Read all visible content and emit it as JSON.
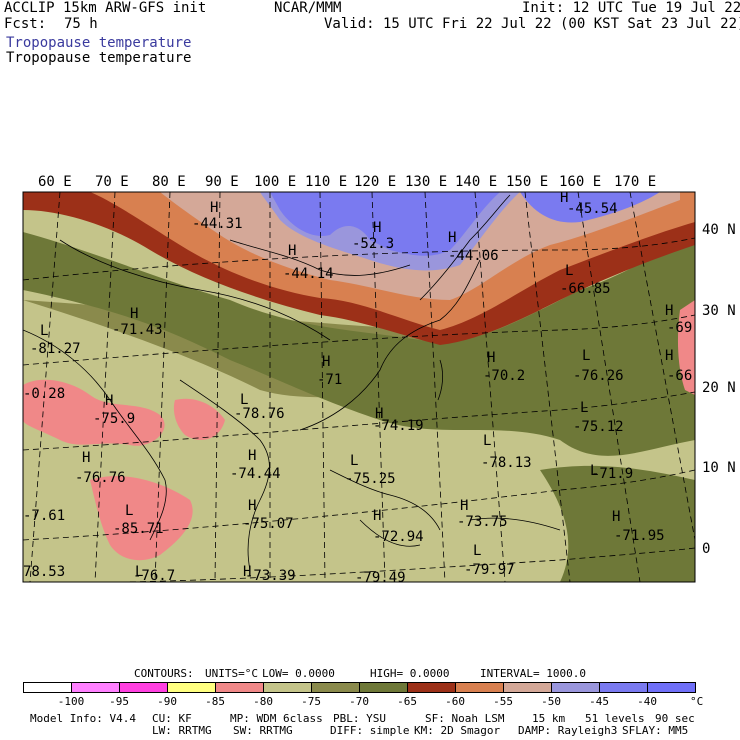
{
  "header": {
    "model_title": "ACCLIP 15km ARW-GFS init",
    "fcst_label": "Fcst:",
    "fcst_value": "75 h",
    "center": "NCAR/MMM",
    "init": "Init: 12 UTC Tue 19 Jul 22",
    "valid": "Valid: 15 UTC Fri 22 Jul 22 (00 KST Sat 23 Jul 22)",
    "field_title_1": "Tropopause temperature",
    "field_title_2": "Tropopause temperature"
  },
  "colors": {
    "title_1": "#3a3a9e",
    "title_2": "#000000",
    "bg_warm": "#c4c48a",
    "dark_olive": "#6e7838",
    "mid_olive": "#8a8a4c",
    "dark_red": "#9c3018",
    "orange": "#d88050",
    "light_salmon": "#d4a898",
    "lavender": "#9a96dc",
    "blue_lav": "#7a7af0",
    "pink": "#f08888"
  },
  "map": {
    "lon_labels": [
      "60 E",
      "70 E",
      "80 E",
      "90 E",
      "100 E",
      "110 E",
      "120 E",
      "130 E",
      "140 E",
      "150 E",
      "160 E",
      "170 E"
    ],
    "lat_labels": [
      "40 N",
      "30 N",
      "20 N",
      "10 N",
      "0"
    ],
    "extrema": [
      {
        "letter": "H",
        "value": "-44.31"
      },
      {
        "letter": "H",
        "value": "-44.14"
      },
      {
        "letter": "H",
        "value": "-52.3"
      },
      {
        "letter": "H",
        "value": "-44.06"
      },
      {
        "letter": "H",
        "value": "-45.54"
      },
      {
        "letter": "L",
        "value": "-66.85"
      },
      {
        "letter": "H",
        "value": "-71.43"
      },
      {
        "letter": "L",
        "value": "-81.27"
      },
      {
        "letter": "H",
        "value": "-71"
      },
      {
        "letter": "H",
        "value": "-70.2"
      },
      {
        "letter": "L",
        "value": "-76.26"
      },
      {
        "letter": "H",
        "value": "-69"
      },
      {
        "letter": "H",
        "value": "-66"
      },
      {
        "letter": "H",
        "value": "-75.9"
      },
      {
        "letter": "L",
        "value": "-78.76"
      },
      {
        "letter": "H",
        "value": "-74.19"
      },
      {
        "letter": "L",
        "value": "-75.12"
      },
      {
        "letter": "H",
        "value": "-76.76"
      },
      {
        "letter": "H",
        "value": "-74.44"
      },
      {
        "letter": "L",
        "value": "-75.25"
      },
      {
        "letter": "L",
        "value": "-78.13"
      },
      {
        "letter": "L",
        "value": "-71.9"
      },
      {
        "letter": "L",
        "value": "-85.71"
      },
      {
        "letter": "H",
        "value": "-75.07"
      },
      {
        "letter": "H",
        "value": "-73.75"
      },
      {
        "letter": "H",
        "value": "-71.95"
      },
      {
        "letter": "H",
        "value": "-72.94"
      },
      {
        "letter": "L",
        "value": "-79.97"
      },
      {
        "letter": "L",
        "value": "-76.7"
      },
      {
        "letter": "H",
        "value": "-73.39"
      },
      {
        "letter": "",
        "value": "-0.28"
      },
      {
        "letter": "",
        "value": "-7.61"
      },
      {
        "letter": "",
        "value": "78.53"
      },
      {
        "letter": "",
        "value": "-79.49"
      }
    ]
  },
  "contour_info": {
    "contours_label": "CONTOURS:",
    "units": "UNITS=°C",
    "low": "LOW=  0.0000",
    "high": "HIGH=  0.0000",
    "interval": "INTERVAL=  1000.0"
  },
  "legend": {
    "colors": [
      "#ffffff",
      "#ff80ff",
      "#ff40e0",
      "#ffff80",
      "#f08888",
      "#c4c48a",
      "#8a8a4c",
      "#6e7838",
      "#9c3018",
      "#d88050",
      "#d4a898",
      "#9a96dc",
      "#7a7af0",
      "#7070f8"
    ],
    "tick_labels": [
      "-100",
      "-95",
      "-90",
      "-85",
      "-80",
      "-75",
      "-70",
      "-65",
      "-60",
      "-55",
      "-50",
      "-45",
      "-40"
    ],
    "unit": "°C"
  },
  "footer": {
    "line1": [
      "Model Info: V4.4",
      "CU: KF",
      "MP: WDM 6class",
      "PBL: YSU",
      "SF: Noah LSM",
      "15 km",
      "51 levels",
      "90 sec"
    ],
    "line2": [
      "LW: RRTMG",
      "SW: RRTMG",
      "DIFF: simple",
      "KM: 2D Smagor",
      "DAMP: Rayleigh3",
      "SFLAY: MM5"
    ]
  }
}
